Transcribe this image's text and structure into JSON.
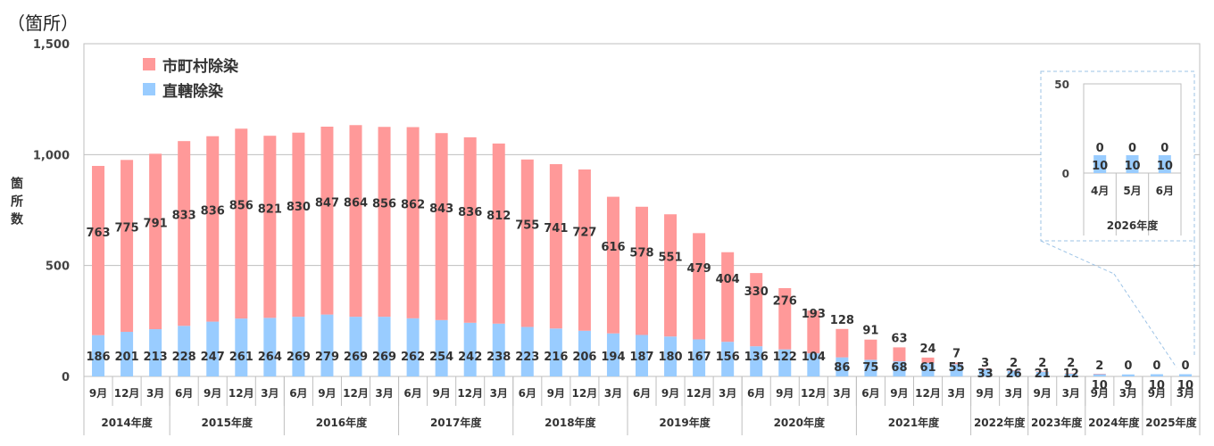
{
  "unit_label": "（箇所）",
  "y_axis_title": "箇所数",
  "legend": {
    "municipal": {
      "label": "市町村除染",
      "color": "#FF9999"
    },
    "direct": {
      "label": "直轄除染",
      "color": "#99CCFF"
    }
  },
  "chart_data": {
    "type": "bar",
    "stacked": true,
    "ylim": [
      0,
      1500
    ],
    "yticks": [
      "0",
      "500",
      "1,000",
      "1,500"
    ],
    "grid": true,
    "legend_position": "top-left",
    "categories": [
      "9月",
      "12月",
      "3月",
      "6月",
      "9月",
      "12月",
      "3月",
      "6月",
      "9月",
      "12月",
      "3月",
      "6月",
      "9月",
      "12月",
      "3月",
      "6月",
      "9月",
      "12月",
      "3月",
      "6月",
      "9月",
      "12月",
      "3月",
      "6月",
      "9月",
      "12月",
      "3月",
      "6月",
      "9月",
      "12月",
      "3月",
      "9月",
      "3月",
      "9月",
      "3月",
      "9月",
      "3月",
      "9月",
      "3月"
    ],
    "fiscal_years": [
      {
        "label": "2014年度",
        "count": 3
      },
      {
        "label": "2015年度",
        "count": 4
      },
      {
        "label": "2016年度",
        "count": 4
      },
      {
        "label": "2017年度",
        "count": 4
      },
      {
        "label": "2018年度",
        "count": 4
      },
      {
        "label": "2019年度",
        "count": 4
      },
      {
        "label": "2020年度",
        "count": 4
      },
      {
        "label": "2021年度",
        "count": 4
      },
      {
        "label": "2022年度",
        "count": 2
      },
      {
        "label": "2023年度",
        "count": 2
      },
      {
        "label": "2024年度",
        "count": 2
      },
      {
        "label": "2025年度",
        "count": 2
      }
    ],
    "series": [
      {
        "name": "直轄除染",
        "values": [
          186,
          201,
          213,
          228,
          247,
          261,
          264,
          269,
          279,
          269,
          269,
          262,
          254,
          242,
          238,
          223,
          216,
          206,
          194,
          187,
          180,
          167,
          156,
          136,
          122,
          104,
          86,
          75,
          68,
          61,
          55,
          33,
          26,
          21,
          12,
          10,
          9,
          10,
          10
        ]
      },
      {
        "name": "市町村除染",
        "values": [
          763,
          775,
          791,
          833,
          836,
          856,
          821,
          830,
          847,
          864,
          856,
          862,
          843,
          836,
          812,
          755,
          741,
          727,
          616,
          578,
          551,
          479,
          404,
          330,
          276,
          193,
          128,
          91,
          63,
          24,
          7,
          3,
          2,
          2,
          2,
          2,
          0,
          0,
          0
        ]
      }
    ],
    "inset": {
      "ylim": [
        0,
        50
      ],
      "yticks": [
        "0",
        "50"
      ],
      "categories": [
        "4月",
        "5月",
        "6月"
      ],
      "fiscal_year": "2026年度",
      "series": [
        {
          "name": "直轄除染",
          "values": [
            10,
            10,
            10
          ]
        },
        {
          "name": "市町村除染",
          "values": [
            0,
            0,
            0
          ]
        }
      ]
    }
  }
}
